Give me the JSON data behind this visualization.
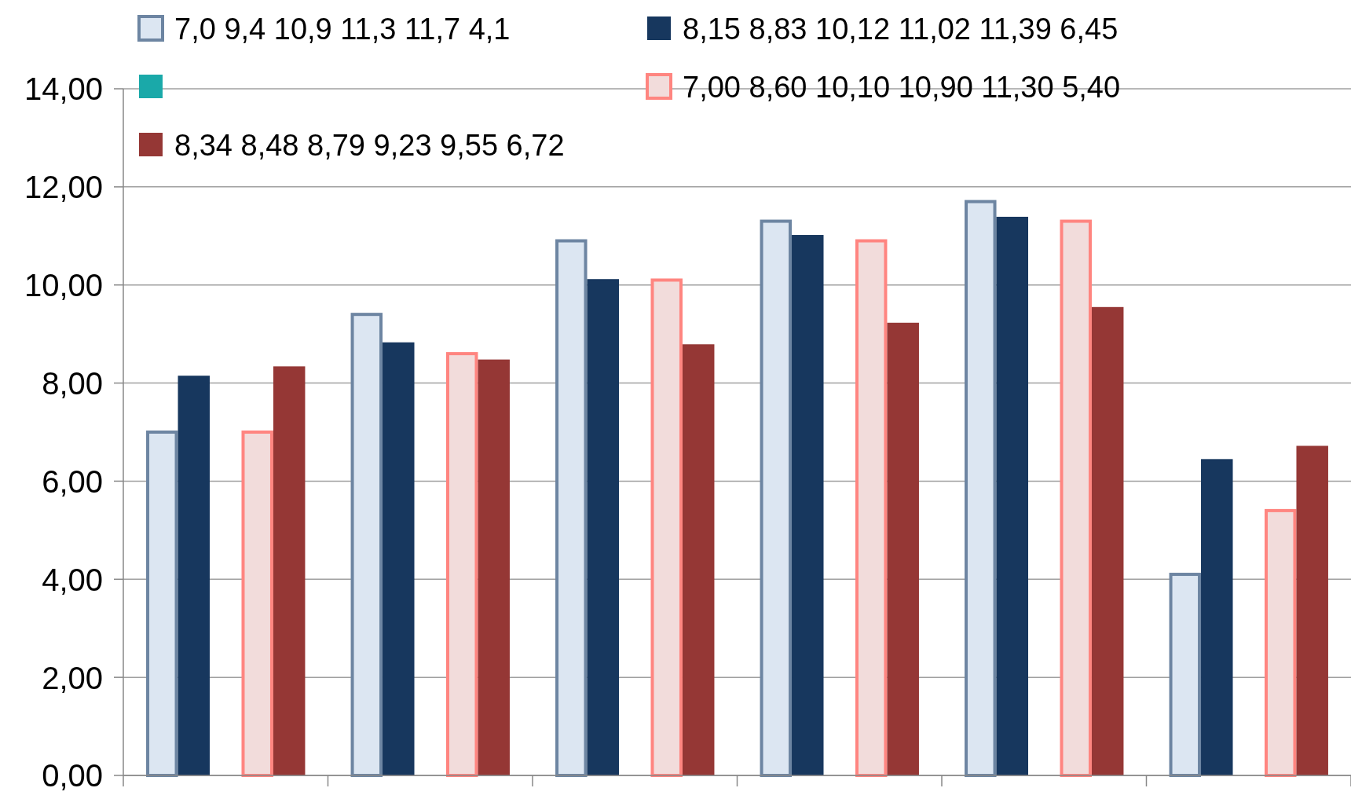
{
  "chart_data": {
    "type": "bar",
    "categories": [
      null,
      null,
      null,
      null,
      null,
      null
    ],
    "series": [
      {
        "name": "7,0 9,4 10,9 11,3 11,7 4,1",
        "color": "#dce6f2",
        "values": [
          7.0,
          9.4,
          10.9,
          11.3,
          11.7,
          4.1
        ]
      },
      {
        "name": "8,15 8,83 10,12 11,02 11,39 6,45",
        "color": "#17375e",
        "values": [
          8.15,
          8.83,
          10.12,
          11.02,
          11.39,
          6.45
        ]
      },
      {
        "color": "#1aa9a9",
        "values": [
          null,
          null,
          null,
          null,
          null,
          null
        ]
      },
      {
        "name": "7,00 8,60 10,10 10,90 11,30 5,40",
        "color": "#f2dcdb",
        "values": [
          7.0,
          8.6,
          10.1,
          10.9,
          11.3,
          5.4
        ]
      },
      {
        "name": "8,34 8,48 8,79 9,23 9,55 6,72",
        "color": "#953735",
        "values": [
          8.34,
          8.48,
          8.79,
          9.23,
          9.55,
          6.72
        ]
      }
    ],
    "ylim": [
      0,
      14
    ],
    "yticks": [
      {
        "value": 0,
        "label": "0,00"
      },
      {
        "value": 2,
        "label": "2,00"
      },
      {
        "value": 4,
        "label": "4,00"
      },
      {
        "value": 6,
        "label": "6,00"
      },
      {
        "value": 8,
        "label": "8,00"
      },
      {
        "value": 10,
        "label": "10,00"
      },
      {
        "value": 12,
        "label": "12,00"
      },
      {
        "value": 14,
        "label": "14,00"
      }
    ],
    "grid": "y",
    "legend": "top"
  }
}
